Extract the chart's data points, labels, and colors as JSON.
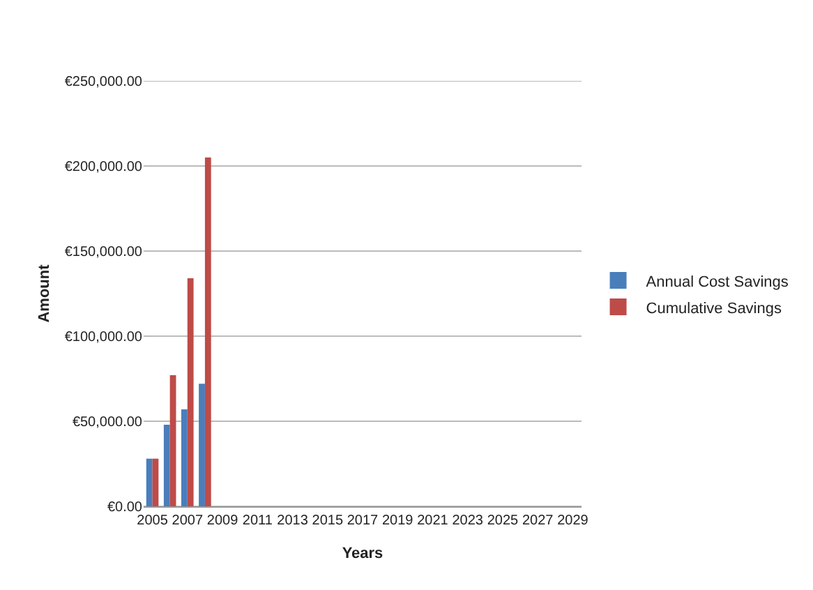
{
  "chart_data": {
    "type": "bar",
    "xlabel": "Years",
    "ylabel": "Amount",
    "categories": [
      "2005",
      null,
      "2007",
      null,
      "2009",
      null,
      "2011",
      null,
      "2013",
      null,
      "2015",
      null,
      "2017",
      null,
      "2019",
      null,
      "2021",
      null,
      "2023",
      null,
      "2025",
      null,
      "2027",
      null,
      "2029"
    ],
    "series": [
      {
        "name": "Annual Cost Savings",
        "color": "#4a7ebb",
        "values": [
          28000,
          48000,
          57000,
          72000,
          null,
          null,
          null,
          null,
          null,
          null,
          null,
          null,
          null,
          null,
          null,
          null,
          null,
          null,
          null,
          null,
          null,
          null,
          null,
          null,
          null
        ]
      },
      {
        "name": "Cumulative Savings",
        "color": "#be4b48",
        "values": [
          28000,
          77000,
          134000,
          205000,
          null,
          null,
          null,
          null,
          null,
          null,
          null,
          null,
          null,
          null,
          null,
          null,
          null,
          null,
          null,
          null,
          null,
          null,
          null,
          null,
          null
        ]
      }
    ],
    "ylim": [
      0,
      250000
    ],
    "yticks": [
      {
        "value": 0,
        "label": "€0.00"
      },
      {
        "value": 50000,
        "label": "€50,000.00"
      },
      {
        "value": 100000,
        "label": "€100,000.00"
      },
      {
        "value": 150000,
        "label": "€150,000.00"
      },
      {
        "value": 200000,
        "label": "€200,000.00"
      },
      {
        "value": 250000,
        "label": "€250,000.00"
      }
    ],
    "grid": "y",
    "legend": "right"
  }
}
